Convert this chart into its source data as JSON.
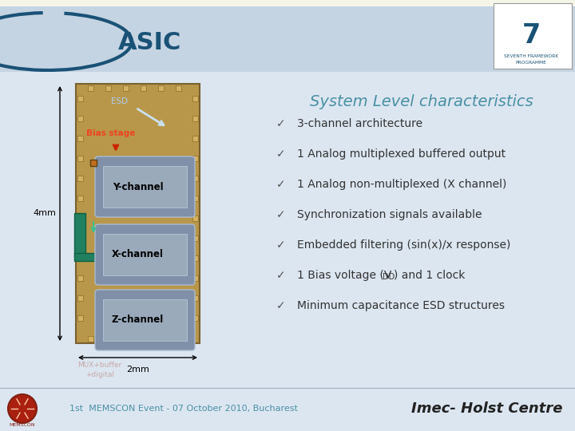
{
  "title": "ASIC",
  "top_strip_bg": "#f5f5e8",
  "header_bg": "#c5d4e3",
  "content_bg": "#dce6f1",
  "section_title": "System Level characteristics",
  "section_title_color": "#4a90a4",
  "bullet_items": [
    "3-channel architecture",
    "1 Analog multiplexed buffered output",
    "1 Analog non-multiplexed (X channel)",
    "Synchronization signals available",
    "Embedded filtering (sin(x)/x response)",
    "1 Bias voltage (V_DD) and 1 clock",
    "Minimum capacitance ESD structures"
  ],
  "bullet_color": "#333333",
  "check_color": "#555555",
  "dim_label_v": "4mm",
  "dim_label_h": "2mm",
  "footer_text": "1st  MEMSCON Event - 07 October 2010, Bucharest",
  "footer_right": "Imec- Holst Centre",
  "footer_text_color": "#4a90a4",
  "footer_right_color": "#222222",
  "asic_title_color": "#1a5276",
  "chip_bg": "#b8974a",
  "channel_box_bg": "#8a9aaa",
  "logo_color": "#1a5276",
  "arrow_esd_color": "#c8e0f0",
  "arrow_bias_color": "#cc2200",
  "green_connector_color": "#208060"
}
